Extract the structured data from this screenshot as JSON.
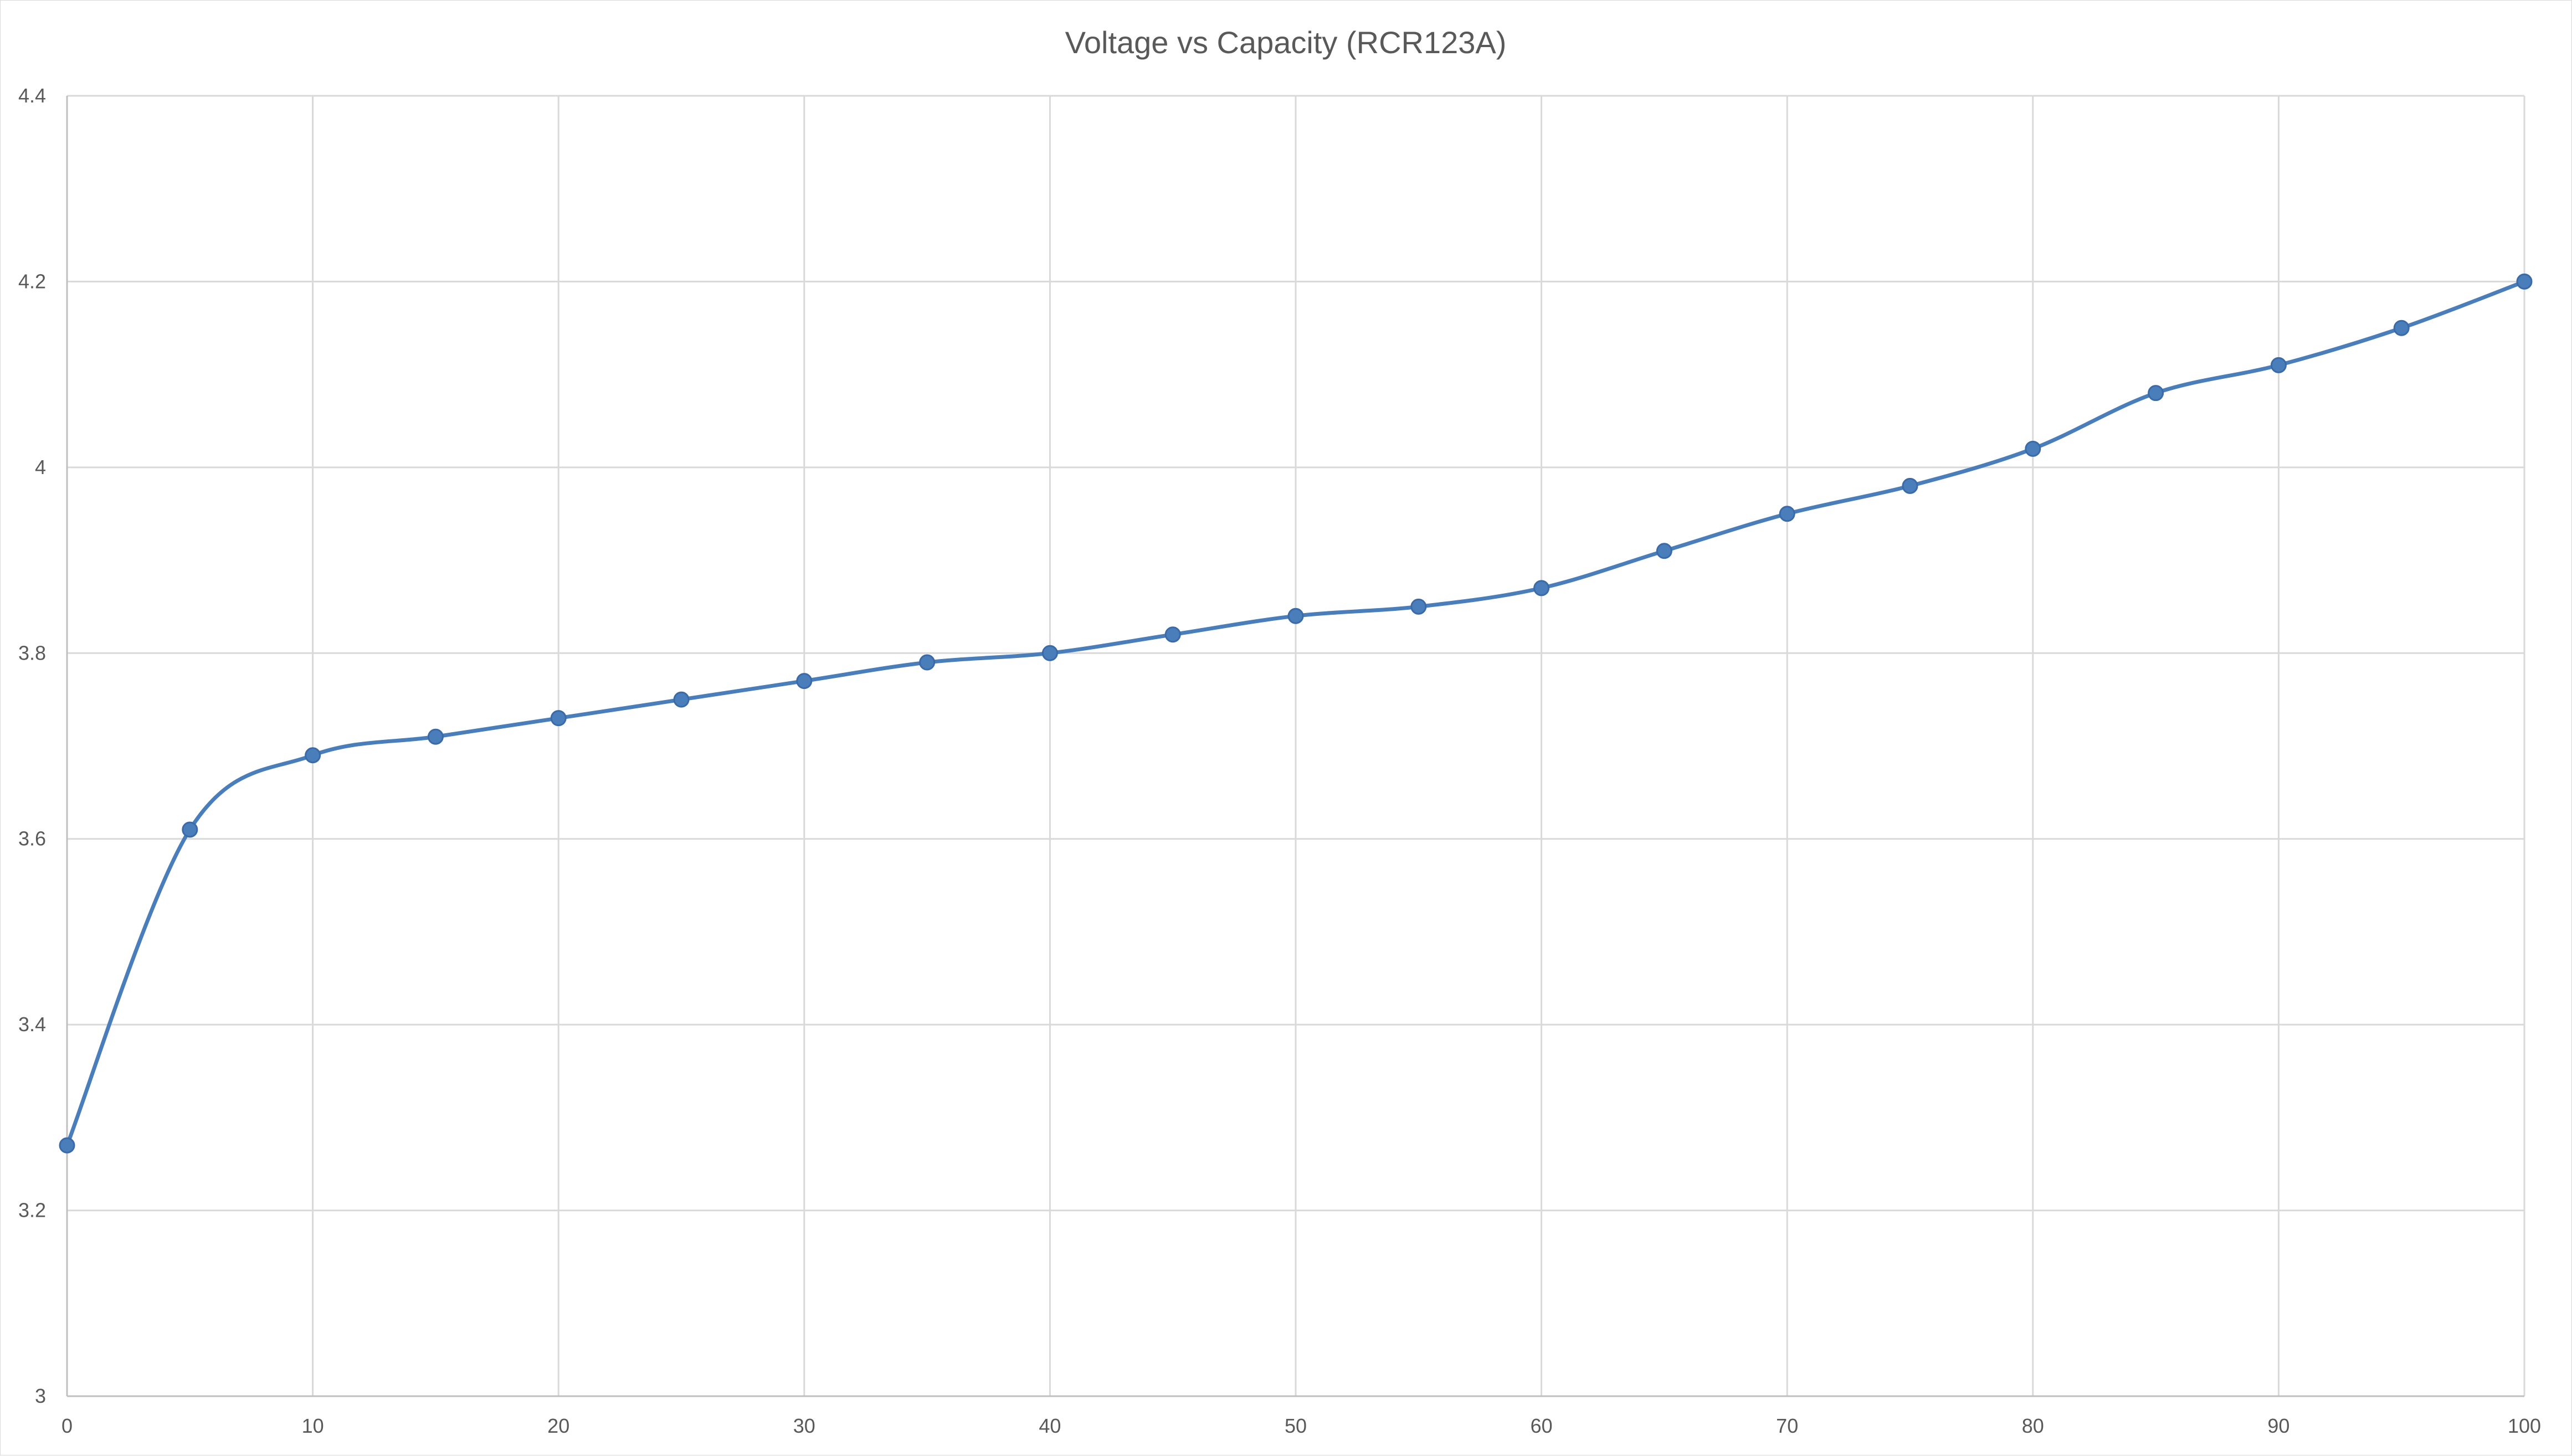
{
  "chart_data": {
    "type": "line",
    "title": "Voltage vs Capacity (RCR123A)",
    "xlabel": "",
    "ylabel": "",
    "xlim": [
      0,
      100
    ],
    "ylim": [
      3,
      4.4
    ],
    "x_ticks": [
      "0",
      "10",
      "20",
      "30",
      "40",
      "50",
      "60",
      "70",
      "80",
      "90",
      "100"
    ],
    "y_ticks": [
      "3",
      "3.2",
      "3.4",
      "3.6",
      "3.8",
      "4",
      "4.2",
      "4.4"
    ],
    "grid": true,
    "legend": "none",
    "smooth": true,
    "series_color": "#4a7ebb",
    "series": [
      {
        "x": [
          0,
          5,
          10,
          15,
          20,
          25,
          30,
          35,
          40,
          45,
          50,
          55,
          60,
          65,
          70,
          75,
          80,
          85,
          90,
          95,
          100
        ],
        "y": [
          3.27,
          3.61,
          3.69,
          3.71,
          3.73,
          3.75,
          3.77,
          3.79,
          3.8,
          3.82,
          3.84,
          3.85,
          3.87,
          3.91,
          3.95,
          3.98,
          4.02,
          4.08,
          4.11,
          4.15,
          4.2
        ]
      }
    ]
  }
}
